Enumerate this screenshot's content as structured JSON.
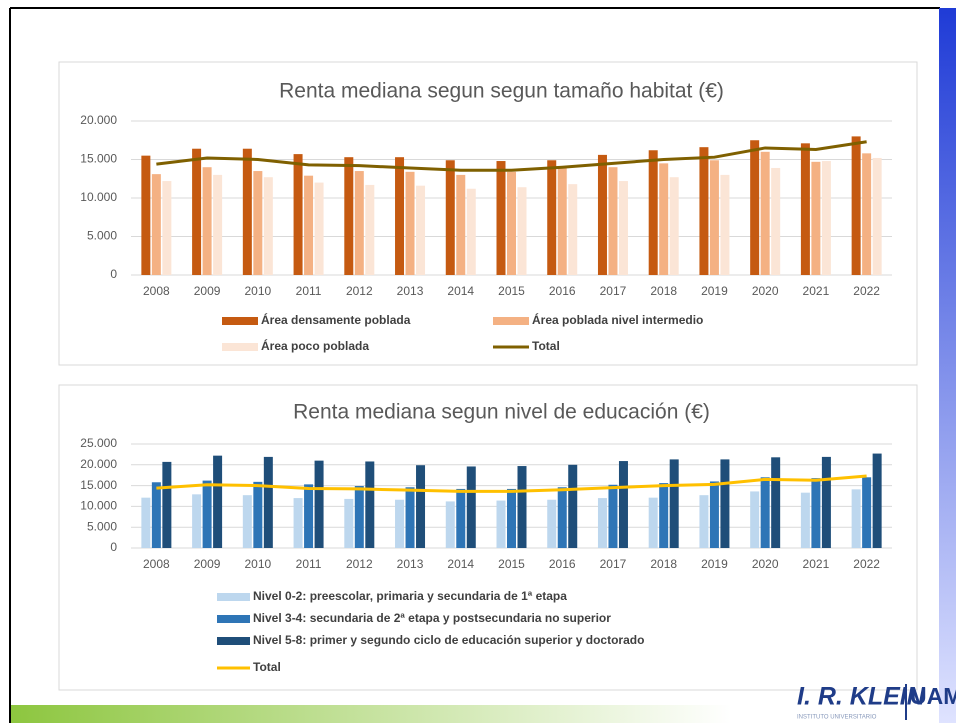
{
  "chart_data": [
    {
      "type": "bar",
      "title": "Renta mediana segun segun tamaño habitat (€)",
      "categories": [
        "2008",
        "2009",
        "2010",
        "2011",
        "2012",
        "2013",
        "2014",
        "2015",
        "2016",
        "2017",
        "2018",
        "2019",
        "2020",
        "2021",
        "2022"
      ],
      "series": [
        {
          "name": "Área densamente poblada",
          "color": "#c55a11",
          "values": [
            15500,
            16400,
            16400,
            15700,
            15300,
            15300,
            14900,
            14800,
            14900,
            15600,
            16200,
            16600,
            17500,
            17100,
            18000
          ]
        },
        {
          "name": "Área poblada nivel intermedio",
          "color": "#f4b183",
          "values": [
            13100,
            14000,
            13500,
            12900,
            13500,
            13400,
            13000,
            13400,
            13900,
            14000,
            14500,
            14900,
            16000,
            14700,
            15800
          ]
        },
        {
          "name": "Área poco poblada",
          "color": "#fbe5d6",
          "values": [
            12200,
            13000,
            12700,
            12000,
            11700,
            11600,
            11200,
            11400,
            11800,
            12200,
            12700,
            13000,
            13900,
            14800,
            15200
          ]
        },
        {
          "name": "Total",
          "color": "#7f6000",
          "type": "line",
          "values": [
            14400,
            15200,
            15000,
            14300,
            14200,
            13900,
            13600,
            13600,
            14000,
            14500,
            15000,
            15300,
            16500,
            16300,
            17300
          ]
        }
      ],
      "ylim": [
        0,
        20000
      ],
      "yticks": [
        0,
        {
          "value": 5000,
          "label": "5.000"
        },
        {
          "value": 10000,
          "label": "10.000"
        },
        {
          "value": 15000,
          "label": "15.000"
        },
        {
          "value": 20000,
          "label": "20.000"
        }
      ],
      "grid": true,
      "legend": "bottom"
    },
    {
      "type": "bar",
      "title": "Renta mediana segun nivel de educación (€)",
      "categories": [
        "2008",
        "2009",
        "2010",
        "2011",
        "2012",
        "2013",
        "2014",
        "2015",
        "2016",
        "2017",
        "2018",
        "2019",
        "2020",
        "2021",
        "2022"
      ],
      "series": [
        {
          "name": "Nivel 0-2: preescolar, primaria y secundaria de 1ª etapa",
          "color": "#bdd7ee",
          "values": [
            12100,
            12900,
            12700,
            12000,
            11800,
            11600,
            11200,
            11400,
            11600,
            12000,
            12100,
            12700,
            13600,
            13300,
            14100
          ]
        },
        {
          "name": "Nivel 3-4: secundaria de 2ª etapa y postsecundaria no superior",
          "color": "#2e75b6",
          "values": [
            15800,
            16200,
            15900,
            15300,
            14900,
            14600,
            14200,
            14200,
            14600,
            15200,
            15600,
            16000,
            17000,
            16800,
            17000
          ]
        },
        {
          "name": "Nivel 5-8: primer y segundo ciclo de educación superior y  doctorado",
          "color": "#1f4e79",
          "values": [
            20700,
            22200,
            21900,
            21000,
            20800,
            19900,
            19600,
            19700,
            20000,
            20900,
            21300,
            21300,
            21800,
            21900,
            22700
          ]
        },
        {
          "name": "Total",
          "color": "#ffc000",
          "type": "line",
          "values": [
            14400,
            15200,
            15000,
            14300,
            14200,
            13900,
            13600,
            13600,
            14000,
            14500,
            15000,
            15300,
            16500,
            16300,
            17300
          ]
        }
      ],
      "ylim": [
        0,
        25000
      ],
      "yticks": [
        0,
        {
          "value": 5000,
          "label": "5.000"
        },
        {
          "value": 10000,
          "label": "10.000"
        },
        {
          "value": 15000,
          "label": "15.000"
        },
        {
          "value": 20000,
          "label": "20.000"
        },
        {
          "value": 25000,
          "label": "25.000"
        }
      ],
      "grid": true,
      "legend": "bottom"
    }
  ],
  "logo": {
    "name": "I. R. KLEIN",
    "uni": "UAM",
    "sub": "INSTITUTO UNIVERSITARIO"
  }
}
